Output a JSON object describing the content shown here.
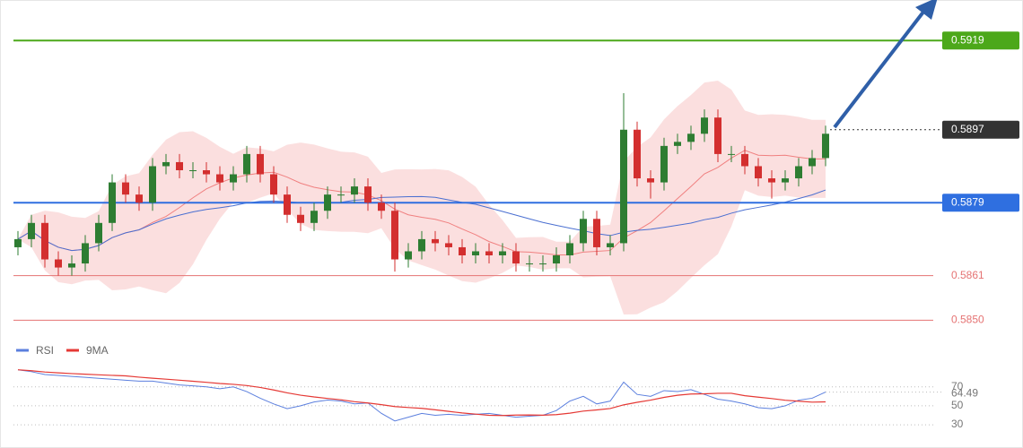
{
  "chart_data": [
    {
      "type": "candlestick",
      "open": [
        0.5868,
        0.587,
        0.5874,
        0.5865,
        0.5863,
        0.5864,
        0.5869,
        0.5874,
        0.5884,
        0.5881,
        0.5879,
        0.5888,
        0.5889,
        0.5887,
        0.5887,
        0.5886,
        0.5884,
        0.5886,
        0.5891,
        0.5886,
        0.5881,
        0.5876,
        0.5874,
        0.5877,
        0.5881,
        0.5881,
        0.5883,
        0.5879,
        0.5877,
        0.5865,
        0.5867,
        0.587,
        0.5869,
        0.5868,
        0.5866,
        0.5867,
        0.5866,
        0.5867,
        0.5864,
        0.5864,
        0.5864,
        0.5866,
        0.5869,
        0.5875,
        0.5868,
        0.5869,
        0.5897,
        0.5885,
        0.5884,
        0.5893,
        0.5894,
        0.5896,
        0.59,
        0.5891,
        0.5891,
        0.5888,
        0.5885,
        0.5884,
        0.5885,
        0.5888,
        0.589
      ],
      "high": [
        0.5872,
        0.5876,
        0.5876,
        0.5867,
        0.5866,
        0.5871,
        0.5876,
        0.5886,
        0.5886,
        0.5883,
        0.589,
        0.5891,
        0.5891,
        0.5889,
        0.5889,
        0.5888,
        0.5888,
        0.5893,
        0.5893,
        0.5888,
        0.5883,
        0.5878,
        0.5879,
        0.5883,
        0.5883,
        0.5885,
        0.5885,
        0.5881,
        0.5879,
        0.5869,
        0.5872,
        0.5872,
        0.5871,
        0.587,
        0.5869,
        0.5869,
        0.5869,
        0.5869,
        0.5866,
        0.5866,
        0.5868,
        0.5871,
        0.5877,
        0.5877,
        0.5871,
        0.5906,
        0.5899,
        0.5887,
        0.5895,
        0.5896,
        0.5898,
        0.5902,
        0.5902,
        0.5893,
        0.5893,
        0.589,
        0.5887,
        0.5887,
        0.589,
        0.5892,
        0.5898
      ],
      "low": [
        0.5866,
        0.5868,
        0.5863,
        0.5861,
        0.5861,
        0.5862,
        0.5867,
        0.5872,
        0.5879,
        0.5877,
        0.5877,
        0.5886,
        0.5885,
        0.5885,
        0.5884,
        0.5882,
        0.5882,
        0.5884,
        0.5884,
        0.5879,
        0.5874,
        0.5872,
        0.5872,
        0.5875,
        0.5879,
        0.5879,
        0.5877,
        0.5875,
        0.5862,
        0.5863,
        0.5865,
        0.5867,
        0.5866,
        0.5864,
        0.5864,
        0.5864,
        0.5864,
        0.5862,
        0.5862,
        0.5862,
        0.5862,
        0.5864,
        0.5867,
        0.5866,
        0.5866,
        0.5867,
        0.5883,
        0.588,
        0.5882,
        0.5891,
        0.5892,
        0.5894,
        0.5889,
        0.5889,
        0.5886,
        0.5883,
        0.588,
        0.5882,
        0.5883,
        0.5886,
        0.5888
      ],
      "close": [
        0.587,
        0.5874,
        0.5865,
        0.5863,
        0.5864,
        0.5869,
        0.5874,
        0.5884,
        0.5881,
        0.5879,
        0.5888,
        0.5889,
        0.5887,
        0.5887,
        0.5886,
        0.5884,
        0.5886,
        0.5891,
        0.5886,
        0.5881,
        0.5876,
        0.5874,
        0.5877,
        0.5881,
        0.5881,
        0.5883,
        0.5879,
        0.5877,
        0.5865,
        0.5867,
        0.587,
        0.5869,
        0.5868,
        0.5866,
        0.5867,
        0.5866,
        0.5867,
        0.5864,
        0.5864,
        0.5864,
        0.5866,
        0.5869,
        0.5875,
        0.5868,
        0.5869,
        0.5897,
        0.5885,
        0.5884,
        0.5893,
        0.5894,
        0.5896,
        0.59,
        0.5891,
        0.5891,
        0.5888,
        0.5885,
        0.5884,
        0.5885,
        0.5888,
        0.589,
        0.5896
      ],
      "up_color": "#2e7d32",
      "down_color": "#d32f2f",
      "ylim": [
        0.5845,
        0.5929
      ],
      "bands": {
        "period": 10,
        "color": "#f7b9b9",
        "mid_color": "#f08080"
      },
      "ma": {
        "period": 25,
        "color": "#4a6fd1"
      },
      "levels": [
        {
          "value": 0.5919,
          "color": "#4ca81a",
          "style": "tag"
        },
        {
          "value": 0.5897,
          "color": "#333333",
          "style": "tag",
          "dotted": true
        },
        {
          "value": 0.5879,
          "color": "#2f6fe0",
          "style": "tag"
        },
        {
          "value": 0.5861,
          "color": "#e57373",
          "style": "text"
        },
        {
          "value": 0.585,
          "label": "0.5850",
          "color": "#e57373",
          "style": "text"
        }
      ]
    },
    {
      "type": "line",
      "series": [
        {
          "name": "RSI",
          "color": "#5b7fde",
          "values": [
            88,
            86,
            83,
            82,
            81,
            80,
            79,
            78,
            77,
            76,
            76,
            74,
            72,
            71,
            70,
            68,
            70,
            65,
            58,
            52,
            47,
            50,
            54,
            56,
            55,
            52,
            53,
            42,
            34,
            38,
            42,
            40,
            41,
            40,
            41,
            42,
            40,
            38,
            39,
            40,
            45,
            55,
            60,
            52,
            55,
            75,
            62,
            60,
            66,
            65,
            67,
            62,
            57,
            55,
            52,
            48,
            47,
            50,
            56,
            58,
            64.49
          ]
        },
        {
          "name": "9MA",
          "color": "#e53935",
          "period": 9
        }
      ],
      "ylim": [
        14,
        100
      ],
      "yticks": [
        30,
        50,
        70
      ]
    }
  ]
}
